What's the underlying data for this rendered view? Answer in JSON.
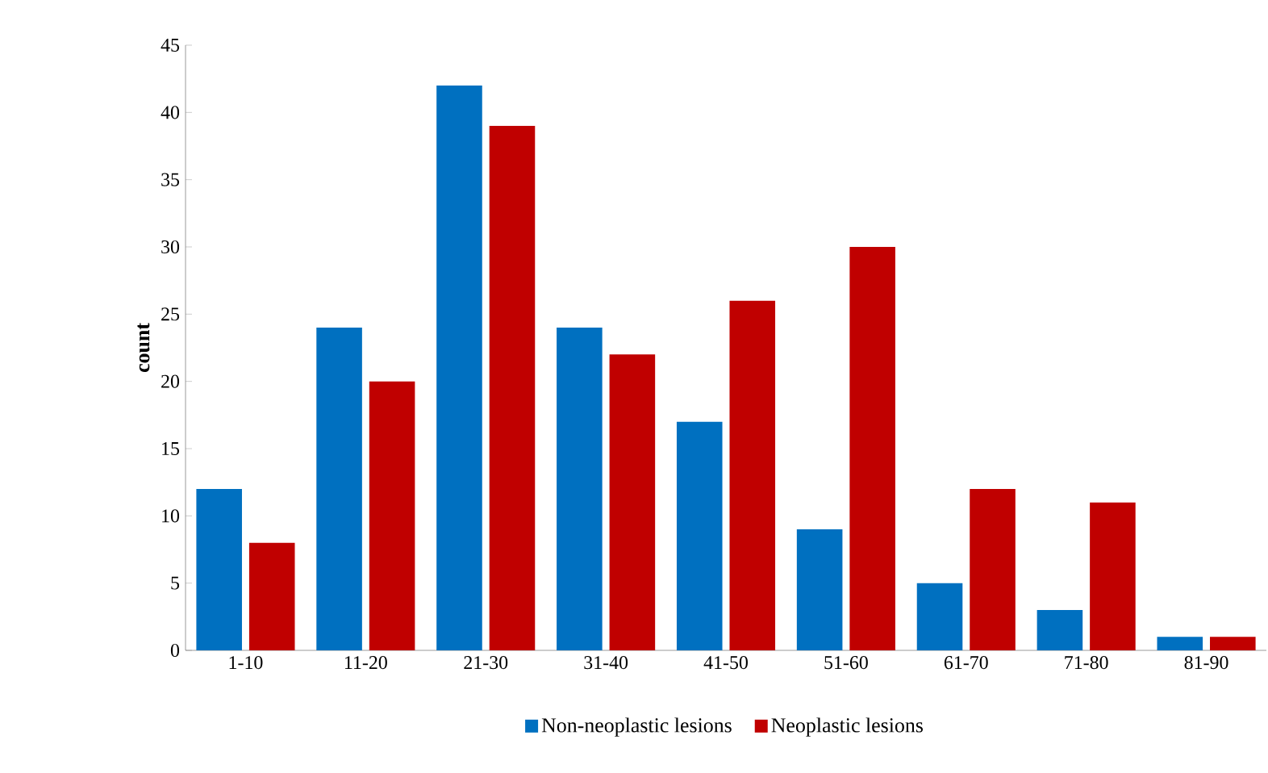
{
  "chart_data": {
    "type": "bar",
    "ylabel": "count",
    "categories": [
      "1-10",
      "11-20",
      "21-30",
      "31-40",
      "41-50",
      "51-60",
      "61-70",
      "71-80",
      "81-90"
    ],
    "series": [
      {
        "name": "Non-neoplastic lesions",
        "color": "#0070c0",
        "values": [
          12,
          24,
          42,
          24,
          17,
          9,
          5,
          3,
          1
        ]
      },
      {
        "name": "Neoplastic lesions",
        "color": "#c00000",
        "values": [
          8,
          20,
          39,
          22,
          26,
          30,
          12,
          11,
          1
        ]
      }
    ],
    "ylim": [
      0,
      45
    ],
    "yticks": [
      0,
      5,
      10,
      15,
      20,
      25,
      30,
      35,
      40,
      45
    ],
    "grid": false,
    "legend": "bottom"
  }
}
